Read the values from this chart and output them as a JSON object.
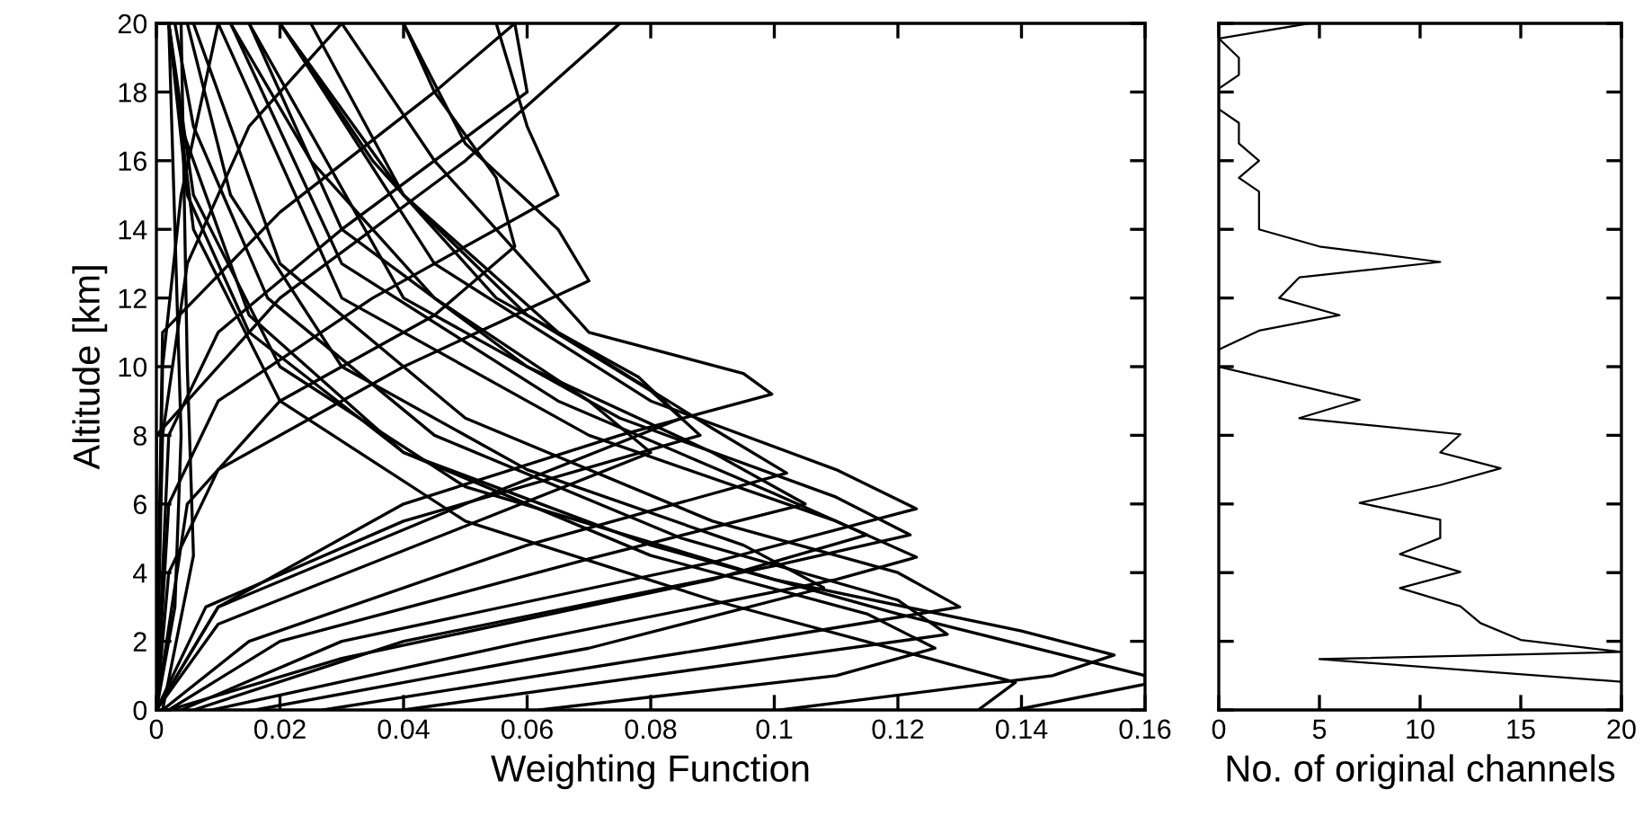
{
  "chart_data": [
    {
      "type": "line",
      "xlabel": "Weighting Function",
      "ylabel": "Altitude [km]",
      "color": "#000000",
      "xlim": [
        0,
        0.16
      ],
      "xticks": [
        0,
        0.02,
        0.04,
        0.06,
        0.08,
        0.1,
        0.12,
        0.14,
        0.16
      ],
      "ylim": [
        0,
        20
      ],
      "yticks": [
        0,
        2,
        4,
        6,
        8,
        10,
        12,
        14,
        16,
        18,
        20
      ],
      "grid": false,
      "legend": false,
      "series": [
        {
          "x": [
            0.139,
            0.16,
            0.16,
            0.12,
            0.08,
            0.04,
            0.015,
            0.005,
            0.002
          ],
          "values": [
            0,
            0.75,
            1.0,
            2.8,
            4.8,
            7.5,
            11,
            15,
            20
          ]
        },
        {
          "x": [
            0.133,
            0.139,
            0.125,
            0.09,
            0.05,
            0.02,
            0.006,
            0.002
          ],
          "values": [
            0,
            0.8,
            1.5,
            3.2,
            5.5,
            9,
            14,
            20
          ]
        },
        {
          "x": [
            0.101,
            0.145,
            0.155,
            0.14,
            0.1,
            0.05,
            0.02,
            0.006,
            0.002
          ],
          "values": [
            0,
            1.0,
            1.6,
            2.3,
            3.8,
            6.5,
            10,
            15,
            20
          ]
        },
        {
          "x": [
            0.062,
            0.11,
            0.126,
            0.115,
            0.08,
            0.04,
            0.015,
            0.004,
            0.002
          ],
          "values": [
            0,
            1.0,
            1.8,
            2.8,
            4.5,
            7.5,
            11.5,
            17,
            20
          ]
        },
        {
          "x": [
            0.04,
            0.1,
            0.128,
            0.12,
            0.085,
            0.045,
            0.018,
            0.006,
            0.003
          ],
          "values": [
            0,
            1.5,
            2.2,
            3.2,
            5,
            8,
            12,
            17,
            20
          ]
        },
        {
          "x": [
            0.027,
            0.09,
            0.13,
            0.12,
            0.09,
            0.05,
            0.02,
            0.006
          ],
          "values": [
            0,
            1.8,
            3.0,
            4.0,
            5.5,
            8.5,
            13,
            20
          ]
        },
        {
          "x": [
            0.016,
            0.07,
            0.108,
            0.095,
            0.06,
            0.03,
            0.012,
            0.005
          ],
          "values": [
            0,
            1.8,
            3.56,
            4.8,
            7,
            10,
            15,
            20
          ]
        },
        {
          "x": [
            0.009,
            0.06,
            0.11,
            0.123,
            0.11,
            0.07,
            0.03,
            0.01
          ],
          "values": [
            0,
            2.0,
            3.8,
            4.45,
            5.5,
            8,
            12,
            20
          ]
        },
        {
          "x": [
            0.006,
            0.04,
            0.1,
            0.122,
            0.11,
            0.075,
            0.04,
            0.015
          ],
          "values": [
            0,
            2,
            4.2,
            5.1,
            6.2,
            8.5,
            12,
            20
          ]
        },
        {
          "x": [
            0.004,
            0.03,
            0.09,
            0.123,
            0.11,
            0.08,
            0.045,
            0.02
          ],
          "values": [
            0,
            2,
            4.3,
            5.86,
            7,
            9,
            13,
            20
          ]
        },
        {
          "x": [
            0.002,
            0.02,
            0.07,
            0.105,
            0.09,
            0.06,
            0.03,
            0.015
          ],
          "values": [
            0,
            2,
            4.4,
            6.0,
            7.5,
            10,
            14,
            20
          ]
        },
        {
          "x": [
            0.001,
            0.015,
            0.06,
            0.102,
            0.09,
            0.065,
            0.04,
            0.02
          ],
          "values": [
            0,
            2,
            4.8,
            6.9,
            8.2,
            11,
            15,
            20
          ]
        },
        {
          "x": [
            0.002,
            0.03,
            0.09,
            0.115,
            0.1,
            0.065,
            0.03,
            0.012
          ],
          "values": [
            0,
            1.5,
            3.8,
            5.1,
            6.3,
            9,
            13,
            20
          ]
        },
        {
          "x": [
            0.0,
            0.01,
            0.04,
            0.075,
            0.0996,
            0.095,
            0.07,
            0.06,
            0.045,
            0.03
          ],
          "values": [
            0,
            3,
            6,
            8,
            9.2,
            9.8,
            11,
            13,
            16,
            20
          ]
        },
        {
          "x": [
            0.0,
            0.008,
            0.04,
            0.088,
            0.08,
            0.06,
            0.04,
            0.025
          ],
          "values": [
            0,
            3,
            5.5,
            8,
            9.3,
            11.5,
            15,
            20
          ]
        },
        {
          "x": [
            0.0,
            0.01,
            0.045,
            0.08,
            0.07,
            0.045,
            0.025,
            0.012
          ],
          "values": [
            0,
            2.5,
            5,
            7.5,
            9,
            12,
            16,
            20
          ]
        },
        {
          "x": [
            0.0,
            0.01,
            0.05,
            0.085,
            0.078,
            0.055,
            0.035,
            0.02
          ],
          "values": [
            0,
            3,
            6,
            8.5,
            9.7,
            12,
            16,
            20
          ]
        },
        {
          "x": [
            0.0,
            0.002,
            0.01,
            0.04,
            0.07,
            0.065,
            0.05,
            0.04
          ],
          "values": [
            0,
            4,
            7,
            10,
            12.5,
            14,
            16.5,
            20
          ]
        },
        {
          "x": [
            0.0,
            0.002,
            0.01,
            0.035,
            0.065,
            0.06,
            0.055
          ],
          "values": [
            0,
            6,
            9,
            12,
            15,
            17,
            20
          ]
        },
        {
          "x": [
            0.0,
            0.002,
            0.01,
            0.03,
            0.06,
            0.058
          ],
          "values": [
            0,
            8,
            11,
            14,
            18,
            20
          ]
        },
        {
          "x": [
            0.0,
            0.005,
            0.02,
            0.045,
            0.058,
            0.055,
            0.045,
            0.04
          ],
          "values": [
            0,
            6,
            9,
            11.5,
            13.5,
            15.5,
            18,
            20
          ]
        },
        {
          "x": [
            0.0,
            0.001,
            0.005,
            0.015,
            0.03
          ],
          "values": [
            0,
            8,
            13,
            17,
            20
          ]
        },
        {
          "x": [
            0.0,
            0.001,
            0.004,
            0.01
          ],
          "values": [
            0,
            10,
            15,
            20
          ]
        },
        {
          "x": [
            0.0,
            0.003,
            0.004,
            0.003,
            0.002
          ],
          "values": [
            0,
            3,
            8,
            14,
            20
          ]
        },
        {
          "x": [
            0.001,
            0.006,
            0.005,
            0.004
          ],
          "values": [
            0,
            4.5,
            10,
            20
          ]
        },
        {
          "x": [
            0.0,
            0.0,
            0.02,
            0.05,
            0.075
          ],
          "values": [
            0,
            8,
            12,
            16,
            20
          ]
        },
        {
          "x": [
            0.0,
            0.001,
            0.02,
            0.045,
            0.058
          ],
          "values": [
            0,
            11,
            14.5,
            18,
            20
          ]
        }
      ]
    },
    {
      "type": "line",
      "xlabel": "No. of original channels",
      "color": "#000000",
      "xlim": [
        0,
        20
      ],
      "xticks": [
        0,
        5,
        10,
        15,
        20
      ],
      "ylim": [
        0,
        20
      ],
      "yticks": [
        0,
        2,
        4,
        6,
        8,
        10,
        12,
        14,
        16,
        18,
        20
      ],
      "tick_labels": "x",
      "grid": false,
      "legend": false,
      "series": [
        {
          "x": [
            20,
            5,
            20,
            15,
            13,
            12,
            9,
            12,
            9,
            11,
            11,
            7,
            11,
            14,
            11,
            12,
            4,
            7,
            0,
            null,
            0,
            2,
            6,
            3,
            4,
            11,
            5,
            2,
            2,
            1,
            2,
            1,
            1,
            0,
            0,
            1,
            1,
            0,
            4.5
          ],
          "values": [
            0.82,
            1.48,
            1.69,
            2.04,
            2.53,
            3.02,
            3.55,
            4.02,
            4.54,
            5.01,
            5.54,
            6.03,
            6.55,
            7.04,
            7.5,
            8.03,
            8.5,
            9.03,
            10.0,
            null,
            10.5,
            11.05,
            11.5,
            12.0,
            12.6,
            13.05,
            13.5,
            14.0,
            15.1,
            15.5,
            16.0,
            16.5,
            17.1,
            17.5,
            18.1,
            18.5,
            19.0,
            19.56,
            20.0
          ]
        }
      ]
    }
  ]
}
